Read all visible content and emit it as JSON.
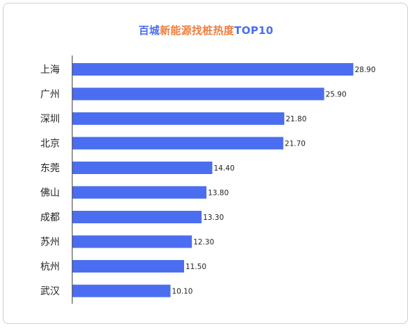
{
  "chart_data": {
    "type": "bar",
    "orientation": "horizontal",
    "title_parts": [
      "百城",
      "新能源找桩热度",
      "TOP10"
    ],
    "categories": [
      "上海",
      "广州",
      "深圳",
      "北京",
      "东莞",
      "佛山",
      "成都",
      "苏州",
      "杭州",
      "武汉"
    ],
    "values": [
      28.9,
      25.9,
      21.8,
      21.7,
      14.4,
      13.8,
      13.3,
      12.3,
      11.5,
      10.1
    ],
    "value_labels": [
      "28.90",
      "25.90",
      "21.80",
      "21.70",
      "14.40",
      "13.80",
      "13.30",
      "12.30",
      "11.50",
      "10.10"
    ],
    "xlim": [
      0,
      29
    ],
    "grid": false,
    "legend": "none",
    "colors": {
      "bar": "#4b6ef0",
      "title_blue": "#4b6ef0",
      "title_orange": "#ef7d3c",
      "axis": "#333333"
    }
  }
}
